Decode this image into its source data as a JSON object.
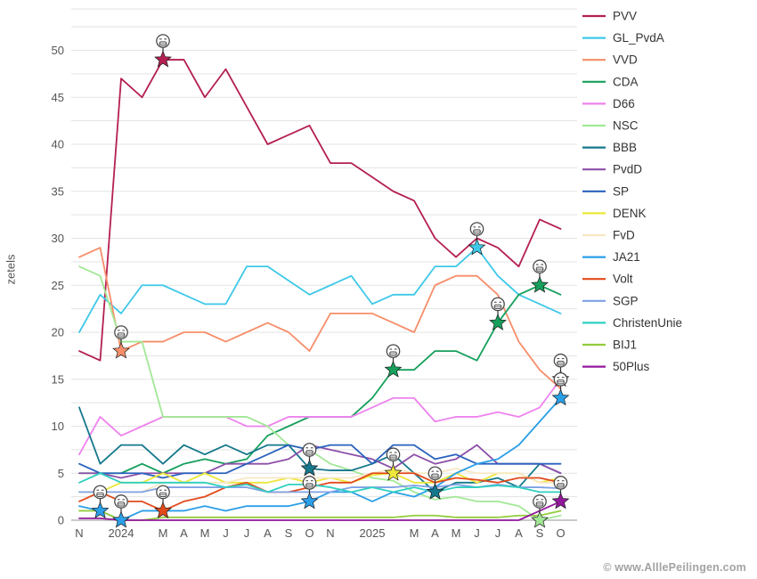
{
  "watermark": "© www.AlllePeilingen.com",
  "chart_data": {
    "type": "line",
    "title": "",
    "ylabel": "zetels",
    "ylim": [
      0,
      54
    ],
    "grid": true,
    "grid_step": 2.5,
    "legend_position": "right",
    "y_ticks": [
      0,
      5,
      10,
      15,
      20,
      25,
      30,
      35,
      40,
      45,
      50
    ],
    "x_tick_labels": [
      "N",
      "",
      "2024",
      "",
      "M",
      "A",
      "M",
      "J",
      "J",
      "A",
      "S",
      "O",
      "N",
      "",
      "2025",
      "",
      "M",
      "A",
      "M",
      "J",
      "J",
      "A",
      "S",
      "O"
    ],
    "series": [
      {
        "name": "PVV",
        "color": "#b41f52",
        "values": [
          18,
          17,
          47,
          45,
          49,
          49,
          45,
          48,
          44,
          40,
          41,
          42,
          38,
          38,
          36.5,
          35,
          34,
          30,
          28,
          30,
          29,
          27,
          32,
          31
        ],
        "stars": [
          {
            "index": 4,
            "value": 49
          }
        ]
      },
      {
        "name": "GL_PvdA",
        "color": "#3ec8e8",
        "values": [
          20,
          24,
          22,
          25,
          25,
          24,
          23,
          23,
          27,
          27,
          25.5,
          24,
          25,
          26,
          23,
          24,
          24,
          27,
          27,
          29,
          26,
          24,
          23,
          22
        ],
        "stars": [
          {
            "index": 19,
            "value": 29
          }
        ]
      },
      {
        "name": "VVD",
        "color": "#f78e6a",
        "values": [
          28,
          29,
          18,
          19,
          19,
          20,
          20,
          19,
          20,
          21,
          20,
          18,
          22,
          22,
          22,
          21,
          20,
          25,
          26,
          26,
          24,
          19,
          16,
          14
        ],
        "stars": [
          {
            "index": 2,
            "value": 18
          }
        ]
      },
      {
        "name": "CDA",
        "color": "#16a05c",
        "values": [
          5,
          5,
          5,
          6,
          5,
          6,
          6.5,
          6,
          6.5,
          9,
          10,
          11,
          11,
          11,
          13,
          16,
          16,
          18,
          18,
          17,
          21,
          24,
          25,
          24
        ],
        "stars": [
          {
            "index": 15,
            "value": 16
          },
          {
            "index": 20,
            "value": 21
          },
          {
            "index": 22,
            "value": 25
          }
        ]
      },
      {
        "name": "D66",
        "color": "#ee82ee",
        "values": [
          7,
          11,
          9,
          10,
          11,
          11,
          11,
          11,
          10,
          10,
          11,
          11,
          11,
          11,
          12,
          13,
          13,
          10.5,
          11,
          11,
          11.5,
          11,
          12,
          15
        ],
        "stars": [
          {
            "index": 23,
            "value": 15
          }
        ]
      },
      {
        "name": "NSC",
        "color": "#a2e896",
        "values": [
          27,
          26,
          19,
          19,
          11,
          11,
          11,
          11,
          11,
          10,
          8,
          7.5,
          6,
          5.3,
          4.5,
          4.2,
          3,
          2.2,
          2.5,
          2,
          2,
          1.5,
          0,
          0.5
        ],
        "stars": [
          {
            "index": 22,
            "value": 0
          }
        ]
      },
      {
        "name": "BBB",
        "color": "#15788c",
        "values": [
          12,
          6,
          8,
          8,
          6,
          8,
          7,
          8,
          7,
          8,
          8,
          5.5,
          5.3,
          5.3,
          6,
          7,
          5,
          3,
          4,
          4,
          4.5,
          3.5,
          6,
          5
        ],
        "stars": [
          {
            "index": 11,
            "value": 5.5
          },
          {
            "index": 17,
            "value": 3
          }
        ]
      },
      {
        "name": "PvdD",
        "color": "#8d4fa8",
        "values": [
          5,
          5,
          4.5,
          5,
          5,
          5,
          5,
          6,
          6,
          6,
          6.5,
          8,
          7.5,
          7,
          6.5,
          5.5,
          7,
          6,
          6.5,
          8,
          6,
          6,
          6,
          5
        ],
        "stars": []
      },
      {
        "name": "SP",
        "color": "#2a62bd",
        "values": [
          6,
          5,
          5,
          5,
          4.5,
          5,
          5,
          5,
          6,
          7,
          8,
          7.5,
          8,
          8,
          6,
          8,
          8,
          6.5,
          7,
          6,
          6,
          6,
          6,
          6
        ],
        "stars": []
      },
      {
        "name": "DENK",
        "color": "#ece73a",
        "values": [
          3,
          3,
          4,
          4,
          5,
          4,
          5,
          4,
          4,
          4,
          4.5,
          4,
          4.5,
          4,
          4.8,
          5,
          4,
          4,
          5,
          4,
          5,
          5,
          4,
          4.5
        ],
        "stars": [
          {
            "index": 15,
            "value": 5
          }
        ]
      },
      {
        "name": "FvD",
        "color": "#f6e8c3",
        "values": [
          3,
          3,
          3,
          3,
          4,
          4,
          4,
          4,
          4.5,
          4.5,
          4.5,
          4.5,
          4.5,
          4.5,
          5,
          5.5,
          5,
          5,
          5.5,
          5,
          5,
          5,
          4,
          4
        ],
        "stars": []
      },
      {
        "name": "JA21",
        "color": "#2b9fe8",
        "values": [
          1.5,
          1,
          0,
          1,
          1,
          1,
          1.5,
          1,
          1.5,
          1.5,
          1.5,
          2,
          3,
          3,
          2,
          3,
          2.5,
          3.5,
          5,
          6,
          6.5,
          8,
          10.5,
          13
        ],
        "stars": [
          {
            "index": 1,
            "value": 1
          },
          {
            "index": 2,
            "value": 0
          },
          {
            "index": 11,
            "value": 2
          },
          {
            "index": 23,
            "value": 13
          }
        ]
      },
      {
        "name": "Volt",
        "color": "#e24a1b",
        "values": [
          2,
          3,
          2,
          2,
          1,
          2,
          2.5,
          3.5,
          4,
          3,
          3,
          3.5,
          4,
          4,
          5,
          5,
          5,
          4,
          4.5,
          4.3,
          4,
          4.5,
          4.5,
          4
        ],
        "stars": [
          {
            "index": 4,
            "value": 1
          }
        ]
      },
      {
        "name": "SGP",
        "color": "#7fa1e5",
        "values": [
          3,
          3,
          3,
          3,
          3.5,
          3.5,
          3.5,
          3.5,
          3.5,
          3,
          3,
          3,
          3,
          3.5,
          3.5,
          3.5,
          3.7,
          3.5,
          3.8,
          3.5,
          3.8,
          3.5,
          3.5,
          3.4
        ],
        "stars": []
      },
      {
        "name": "ChristenUnie",
        "color": "#2ed0c0",
        "values": [
          4,
          5,
          4,
          4,
          4,
          4,
          4,
          3.5,
          3.8,
          3,
          3.8,
          3.8,
          3.5,
          3,
          3.5,
          3,
          3.5,
          3,
          3.5,
          3.5,
          3.7,
          3.5,
          3,
          3
        ],
        "stars": []
      },
      {
        "name": "BIJ1",
        "color": "#94cc3e",
        "values": [
          1,
          1,
          0,
          0,
          0.3,
          0.3,
          0.3,
          0.3,
          0.3,
          0.3,
          0.3,
          0.3,
          0.3,
          0.3,
          0.3,
          0.3,
          0.5,
          0.5,
          0.3,
          0.3,
          0.3,
          0.5,
          0.5,
          1
        ],
        "stars": []
      },
      {
        "name": "50Plus",
        "color": "#93189c",
        "values": [
          0.2,
          0.2,
          0,
          0,
          0,
          0,
          0,
          0,
          0,
          0,
          0,
          0,
          0,
          0,
          0,
          0,
          0,
          0,
          0,
          0,
          0,
          0,
          1,
          2
        ],
        "stars": [
          {
            "index": 23,
            "value": 2
          }
        ]
      }
    ]
  }
}
